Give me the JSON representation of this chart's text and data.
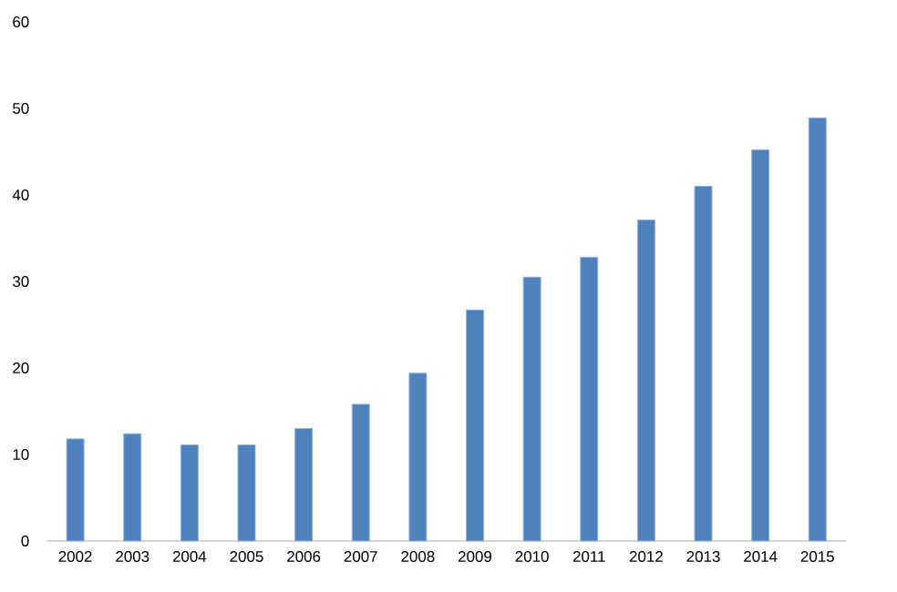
{
  "chart_data": {
    "type": "bar",
    "categories": [
      "2002",
      "2003",
      "2004",
      "2005",
      "2006",
      "2007",
      "2008",
      "2009",
      "2010",
      "2011",
      "2012",
      "2013",
      "2014",
      "2015"
    ],
    "values": [
      11.8,
      12.4,
      11.1,
      11.1,
      13.0,
      15.8,
      19.4,
      26.7,
      30.5,
      32.8,
      37.1,
      41.0,
      45.2,
      48.9
    ],
    "color": "#4f81bd",
    "ylim": [
      0,
      60
    ],
    "yticks": [
      0,
      10,
      20,
      30,
      40,
      50,
      60
    ]
  }
}
